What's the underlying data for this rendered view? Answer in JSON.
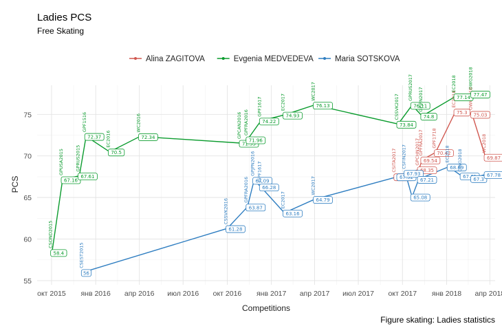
{
  "chart_data": {
    "type": "line",
    "title": "Ladies PCS",
    "subtitle": "Free Skating",
    "caption": "Figure skating: Ladies statistics",
    "xlabel": "Competitions",
    "ylabel": "PCS",
    "ylim": [
      54.5,
      78.5
    ],
    "yticks": [
      55,
      60,
      65,
      70,
      75
    ],
    "xlim": [
      "2015-09-01",
      "2018-04-12"
    ],
    "xticks": [
      {
        "date": "2015-10-01",
        "label": "окт 2015"
      },
      {
        "date": "2016-01-01",
        "label": "янв 2016"
      },
      {
        "date": "2016-04-01",
        "label": "апр 2016"
      },
      {
        "date": "2016-07-01",
        "label": "июл 2016"
      },
      {
        "date": "2016-10-01",
        "label": "окт 2016"
      },
      {
        "date": "2017-01-01",
        "label": "янв 2017"
      },
      {
        "date": "2017-04-01",
        "label": "апр 2017"
      },
      {
        "date": "2017-07-01",
        "label": "июл 2017"
      },
      {
        "date": "2017-10-01",
        "label": "окт 2017"
      },
      {
        "date": "2018-01-01",
        "label": "янв 2018"
      },
      {
        "date": "2018-04-01",
        "label": "апр 2018"
      }
    ],
    "series": [
      {
        "name": "Alina ZAGITOVA",
        "color": "#d0574f",
        "points": [
          {
            "date": "2017-09-16",
            "value": 67.52,
            "label": "67.52",
            "comp": "CSITA2017"
          },
          {
            "date": "2017-11-04",
            "value": 68.35,
            "label": "68.35",
            "comp": "GPCHN2017"
          },
          {
            "date": "2017-11-11",
            "value": 69.54,
            "label": "69.54",
            "comp": "GPFRA2017"
          },
          {
            "date": "2017-12-09",
            "value": 70.42,
            "label": "70.42",
            "comp": "GPF1718"
          },
          {
            "date": "2018-01-19",
            "value": 75.3,
            "label": "75.3",
            "comp": "EC2018"
          },
          {
            "date": "2018-02-23",
            "value": 75.03,
            "label": "75.03",
            "comp": "OWG2018"
          },
          {
            "date": "2018-03-23",
            "value": 69.87,
            "label": "69.87",
            "comp": "WC2018"
          }
        ]
      },
      {
        "name": "Evgenia MEDVEDEVA",
        "color": "#0a9b2d",
        "points": [
          {
            "date": "2015-10-02",
            "value": 58.4,
            "label": "58.4",
            "comp": "CSOND2015"
          },
          {
            "date": "2015-10-24",
            "value": 67.16,
            "label": "67.16",
            "comp": "GPUSA2015"
          },
          {
            "date": "2015-11-28",
            "value": 67.61,
            "label": "67.61",
            "comp": "GPRUS2015"
          },
          {
            "date": "2015-12-12",
            "value": 72.37,
            "label": "72.37",
            "comp": "GPF1516"
          },
          {
            "date": "2016-01-30",
            "value": 70.5,
            "label": "70.5",
            "comp": "EC2016"
          },
          {
            "date": "2016-04-02",
            "value": 72.34,
            "label": "72.34",
            "comp": "WC2016"
          },
          {
            "date": "2016-10-29",
            "value": 71.55,
            "label": "71.55",
            "comp": "GPCAN2016"
          },
          {
            "date": "2016-11-12",
            "value": 71.96,
            "label": "71.96",
            "comp": "GPFRA2016"
          },
          {
            "date": "2016-12-10",
            "value": 74.22,
            "label": "74.22",
            "comp": "GPF1617"
          },
          {
            "date": "2017-01-28",
            "value": 74.93,
            "label": "74.93",
            "comp": "EC2017"
          },
          {
            "date": "2017-04-01",
            "value": 76.13,
            "label": "76.13",
            "comp": "WC2017"
          },
          {
            "date": "2017-09-22",
            "value": 73.84,
            "label": "73.84",
            "comp": "CSSVK2017"
          },
          {
            "date": "2017-10-21",
            "value": 76.11,
            "label": "76.11",
            "comp": "GPRUS2017"
          },
          {
            "date": "2017-11-11",
            "value": 74.8,
            "label": "74.8",
            "comp": "GPJPN2017"
          },
          {
            "date": "2018-01-19",
            "value": 77.14,
            "label": "77.14",
            "comp": "EC2018"
          },
          {
            "date": "2018-02-23",
            "value": 77.47,
            "label": "77.47",
            "comp": "OWG2018"
          }
        ]
      },
      {
        "name": "Maria SOTSKOVA",
        "color": "#2f7ec1",
        "points": [
          {
            "date": "2015-12-05",
            "value": 56,
            "label": "56",
            "comp": "CSEST2015"
          },
          {
            "date": "2016-10-01",
            "value": 61.28,
            "label": "61.28",
            "comp": "CSSVK2016"
          },
          {
            "date": "2016-11-12",
            "value": 63.87,
            "label": "63.87",
            "comp": "GPFRA2016"
          },
          {
            "date": "2016-11-26",
            "value": 67.09,
            "label": "67.09",
            "comp": "GPJPN2016"
          },
          {
            "date": "2016-12-10",
            "value": 66.28,
            "label": "66.28",
            "comp": "JGPF1617"
          },
          {
            "date": "2017-01-28",
            "value": 63.16,
            "label": "63.16",
            "comp": "EC2017"
          },
          {
            "date": "2017-04-01",
            "value": 64.79,
            "label": "64.79",
            "comp": "WC2017"
          },
          {
            "date": "2017-09-22",
            "value": 67.52,
            "label": "67.52",
            "comp": ""
          },
          {
            "date": "2017-10-07",
            "value": 67.93,
            "label": "67.93",
            "comp": "CSFIN2017"
          },
          {
            "date": "2017-10-21",
            "value": 65.08,
            "label": "65.08",
            "comp": ""
          },
          {
            "date": "2017-11-04",
            "value": 67.21,
            "label": "67.21",
            "comp": ""
          },
          {
            "date": "2018-01-05",
            "value": 68.69,
            "label": "68.69",
            "comp": "EC2018"
          },
          {
            "date": "2018-02-01",
            "value": 67.61,
            "label": "67.61",
            "comp": "OWG2018"
          },
          {
            "date": "2018-02-23",
            "value": 67.3,
            "label": "67.3",
            "comp": ""
          },
          {
            "date": "2018-03-23",
            "value": 67.78,
            "label": "67.78",
            "comp": ""
          }
        ]
      }
    ]
  }
}
